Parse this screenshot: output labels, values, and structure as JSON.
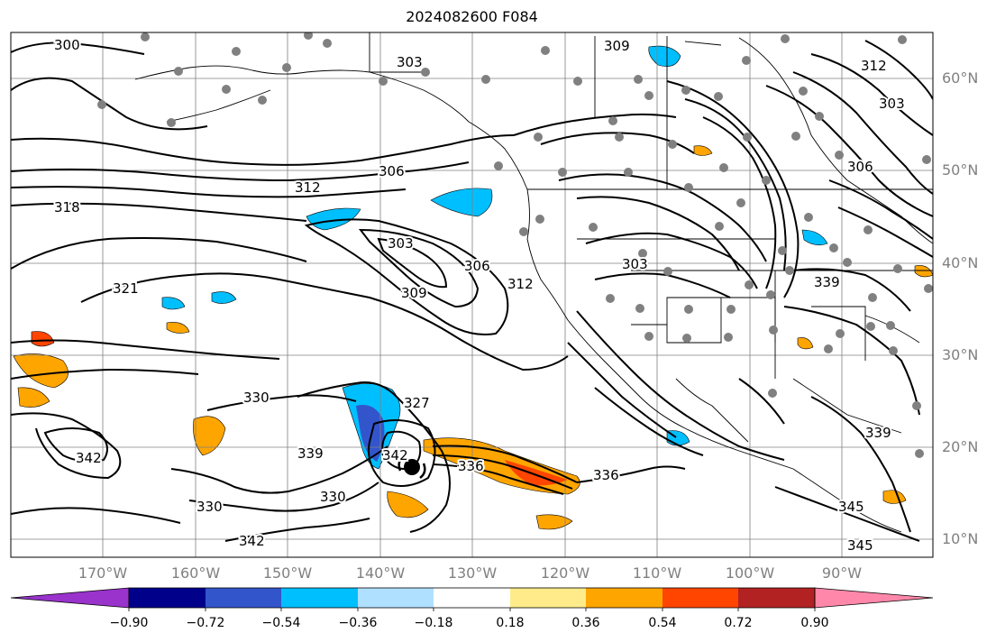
{
  "title": "2024082600 F084",
  "map": {
    "lat_labels": [
      "60°N",
      "50°N",
      "40°N",
      "30°N",
      "20°N",
      "10°N"
    ],
    "lon_labels": [
      "170°W",
      "160°W",
      "150°W",
      "140°W",
      "130°W",
      "120°W",
      "110°W",
      "100°W",
      "90°W"
    ],
    "contour_labels": [
      "300",
      "303",
      "309",
      "312",
      "303",
      "306",
      "318",
      "312",
      "306",
      "303",
      "306",
      "309",
      "321",
      "312",
      "303",
      "339",
      "330",
      "327",
      "342",
      "336",
      "330",
      "342",
      "339",
      "330",
      "342",
      "339",
      "345",
      "345",
      "336"
    ],
    "colors": {
      "contour": "#000000",
      "grid": "#808080",
      "land": "#000000"
    }
  },
  "colorbar": {
    "tick_labels": [
      "−0.90",
      "−0.72",
      "−0.54",
      "−0.36",
      "−0.18",
      "0.18",
      "0.36",
      "0.54",
      "0.72",
      "0.90"
    ],
    "colors": [
      "#9933cc",
      "#00008b",
      "#3355cc",
      "#00bfff",
      "#b0e0ff",
      "#ffffff",
      "#ffeb8a",
      "#ffa500",
      "#ff4500",
      "#b22222",
      "#ff88aa"
    ]
  }
}
